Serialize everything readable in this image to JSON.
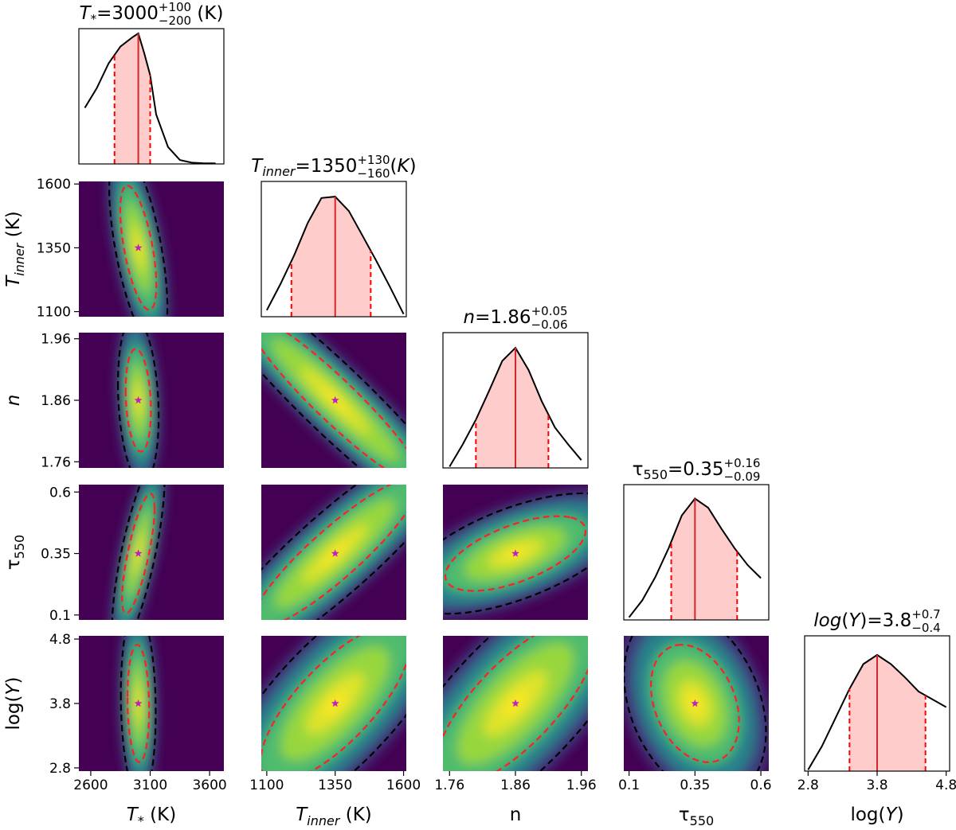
{
  "chart_data": {
    "type": "corner",
    "parameters": [
      {
        "key": "tstar",
        "label": "T* (K)",
        "title_main": "3000",
        "title_upper": "+100",
        "title_lower": "−200",
        "title_unit": "(K)",
        "median": 3000,
        "lower_bound": 2800,
        "upper_bound": 3100,
        "range": [
          2500,
          3720
        ],
        "ticks": [
          "2600",
          "3100",
          "3600"
        ],
        "tick_values": [
          2600,
          3100,
          3600
        ],
        "marginal_x": [
          2550,
          2650,
          2750,
          2850,
          2950,
          3000,
          3050,
          3100,
          3150,
          3250,
          3350,
          3450,
          3550,
          3650
        ],
        "marginal_y": [
          0.43,
          0.58,
          0.77,
          0.9,
          0.97,
          1.0,
          0.85,
          0.68,
          0.38,
          0.13,
          0.03,
          0.01,
          0.005,
          0.005
        ]
      },
      {
        "key": "tinner",
        "label": "Tinner (K)",
        "title_main": "1350",
        "title_upper": "+130",
        "title_lower": "−160",
        "title_unit": "(K)",
        "median": 1350,
        "lower_bound": 1190,
        "upper_bound": 1480,
        "range": [
          1080,
          1610
        ],
        "ticks": [
          "1100",
          "1350",
          "1600"
        ],
        "tick_values": [
          1100,
          1350,
          1600
        ],
        "marginal_x": [
          1100,
          1150,
          1200,
          1250,
          1300,
          1350,
          1400,
          1450,
          1500,
          1550,
          1600
        ],
        "marginal_y": [
          0.05,
          0.25,
          0.47,
          0.72,
          0.91,
          0.92,
          0.81,
          0.62,
          0.43,
          0.23,
          0.02
        ]
      },
      {
        "key": "n",
        "label": "n",
        "title_main": "1.86",
        "title_upper": "+0.05",
        "title_lower": "−0.06",
        "title_unit": "",
        "median": 1.86,
        "lower_bound": 1.8,
        "upper_bound": 1.91,
        "range": [
          1.75,
          1.97
        ],
        "ticks": [
          "1.76",
          "1.86",
          "1.96"
        ],
        "tick_values": [
          1.76,
          1.86,
          1.96
        ],
        "marginal_x": [
          1.76,
          1.78,
          1.8,
          1.82,
          1.84,
          1.86,
          1.88,
          1.9,
          1.92,
          1.94,
          1.96
        ],
        "marginal_y": [
          0.01,
          0.18,
          0.37,
          0.59,
          0.82,
          0.92,
          0.75,
          0.51,
          0.31,
          0.18,
          0.06
        ]
      },
      {
        "key": "tau",
        "label": "τ550",
        "title_main": "0.35",
        "title_upper": "+0.16",
        "title_lower": "−0.09",
        "title_unit": "",
        "median": 0.35,
        "lower_bound": 0.26,
        "upper_bound": 0.51,
        "range": [
          0.08,
          0.63
        ],
        "ticks": [
          "0.1",
          "0.35",
          "0.6"
        ],
        "tick_values": [
          0.1,
          0.35,
          0.6
        ],
        "marginal_x": [
          0.1,
          0.15,
          0.2,
          0.25,
          0.3,
          0.35,
          0.4,
          0.45,
          0.5,
          0.55,
          0.6
        ],
        "marginal_y": [
          0.02,
          0.15,
          0.33,
          0.55,
          0.8,
          0.93,
          0.86,
          0.7,
          0.55,
          0.42,
          0.32
        ]
      },
      {
        "key": "logy",
        "label": "log(Y)",
        "title_main": "3.8",
        "title_upper": "+0.7",
        "title_lower": "−0.4",
        "title_unit": "",
        "median": 3.8,
        "lower_bound": 3.4,
        "upper_bound": 4.5,
        "range": [
          2.75,
          4.85
        ],
        "ticks": [
          "2.8",
          "3.8",
          "4.8"
        ],
        "tick_values": [
          2.8,
          3.8,
          4.8
        ],
        "marginal_x": [
          2.8,
          3.0,
          3.2,
          3.4,
          3.6,
          3.8,
          4.0,
          4.2,
          4.4,
          4.6,
          4.8
        ],
        "marginal_y": [
          0.01,
          0.19,
          0.41,
          0.63,
          0.82,
          0.89,
          0.82,
          0.72,
          0.61,
          0.55,
          0.49
        ]
      }
    ],
    "pairs": [
      {
        "row": 1,
        "col": 0,
        "sx": 100,
        "sy": 160,
        "rho": -0.6
      },
      {
        "row": 2,
        "col": 0,
        "sx": 70,
        "sy": 0.055,
        "rho": -0.2
      },
      {
        "row": 2,
        "col": 1,
        "sx": 210,
        "sy": 0.09,
        "rho": -0.94
      },
      {
        "row": 3,
        "col": 0,
        "sx": 90,
        "sy": 0.16,
        "rho": 0.75
      },
      {
        "row": 3,
        "col": 1,
        "sx": 200,
        "sy": 0.2,
        "rho": 0.9
      },
      {
        "row": 3,
        "col": 2,
        "sx": 0.07,
        "sy": 0.1,
        "rho": 0.6
      },
      {
        "row": 4,
        "col": 0,
        "sx": 60,
        "sy": 0.6,
        "rho": -0.1
      },
      {
        "row": 4,
        "col": 1,
        "sx": 180,
        "sy": 0.8,
        "rho": 0.75
      },
      {
        "row": 4,
        "col": 2,
        "sx": 0.08,
        "sy": 0.85,
        "rho": 0.75
      },
      {
        "row": 4,
        "col": 3,
        "sx": 0.11,
        "sy": 0.6,
        "rho": -0.3
      }
    ],
    "colors": {
      "marginal_line": "#000000",
      "median_line": "#d62728",
      "bounds_line": "#ff0000",
      "fill": "#ffcccc",
      "inner_contour": "#ff2020",
      "outer_contour": "#000000",
      "star": "#c020c0",
      "background": "#440154"
    }
  }
}
